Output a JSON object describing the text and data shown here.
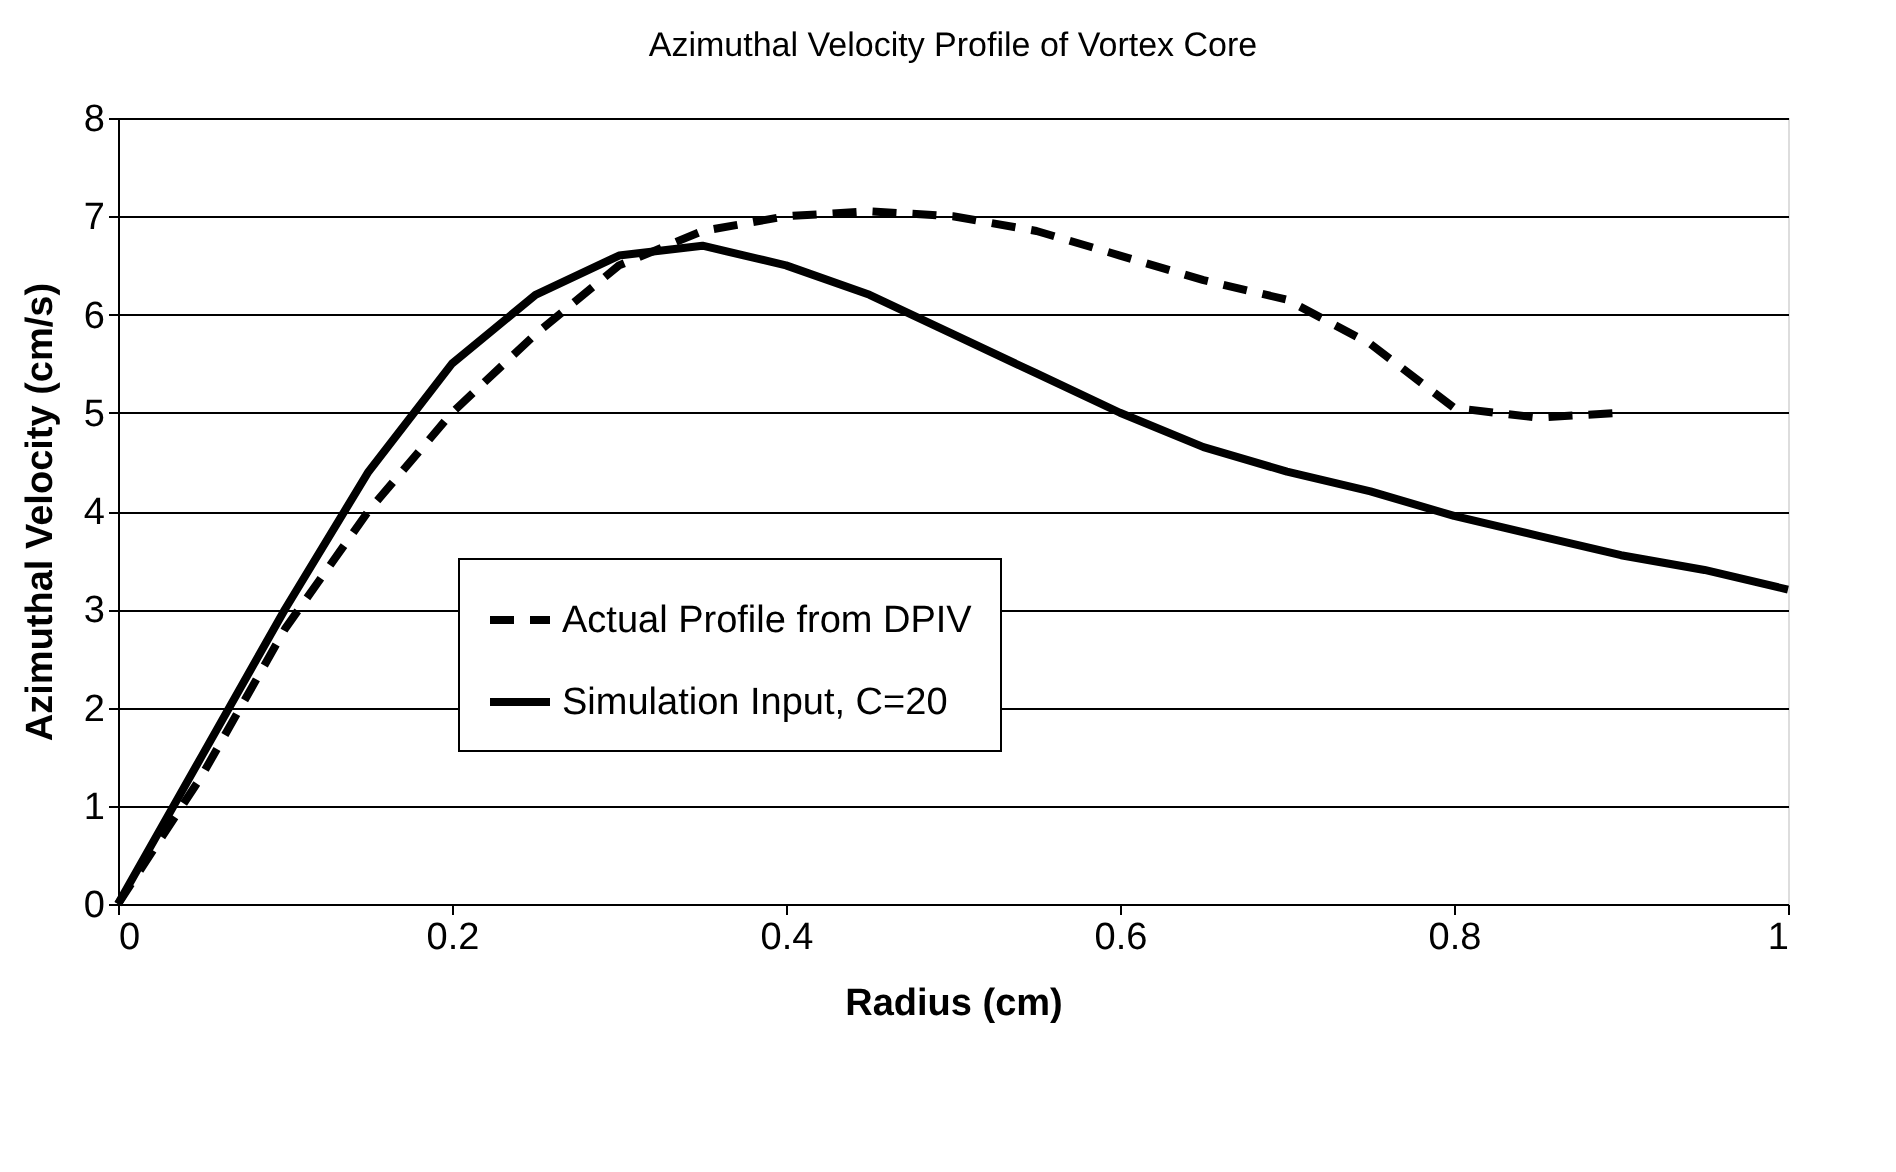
{
  "chart_data": {
    "type": "line",
    "title": "Azimuthal Velocity Profile of Vortex Core",
    "xlabel": "Radius (cm)",
    "ylabel": "Azimuthal Velocity (cm/s)",
    "xlim": [
      0,
      1
    ],
    "ylim": [
      0,
      8
    ],
    "xticks": [
      0,
      0.2,
      0.4,
      0.6,
      0.8,
      1
    ],
    "yticks": [
      0,
      1,
      2,
      3,
      4,
      5,
      6,
      7,
      8
    ],
    "grid": "y",
    "legend": "left",
    "marker": "none",
    "series": [
      {
        "name": "Actual Profile from DPIV",
        "color": "#000000",
        "line_style": "dashed",
        "x": [
          0,
          0.05,
          0.1,
          0.15,
          0.2,
          0.25,
          0.3,
          0.35,
          0.4,
          0.45,
          0.5,
          0.55,
          0.6,
          0.65,
          0.7,
          0.75,
          0.8,
          0.85,
          0.9
        ],
        "values": [
          0,
          1.3,
          2.8,
          4.0,
          5.0,
          5.8,
          6.5,
          6.85,
          7.0,
          7.05,
          7.0,
          6.85,
          6.6,
          6.35,
          6.15,
          5.7,
          5.05,
          4.95,
          5.0
        ]
      },
      {
        "name": "Simulation Input, C=20",
        "color": "#000000",
        "line_style": "solid",
        "x": [
          0,
          0.05,
          0.1,
          0.15,
          0.2,
          0.25,
          0.3,
          0.35,
          0.4,
          0.45,
          0.5,
          0.55,
          0.6,
          0.65,
          0.7,
          0.75,
          0.8,
          0.85,
          0.9,
          0.95,
          1
        ],
        "values": [
          0,
          1.5,
          3.0,
          4.4,
          5.5,
          6.2,
          6.6,
          6.7,
          6.5,
          6.2,
          5.8,
          5.4,
          5.0,
          4.65,
          4.4,
          4.2,
          3.95,
          3.75,
          3.55,
          3.4,
          3.2
        ]
      }
    ]
  }
}
